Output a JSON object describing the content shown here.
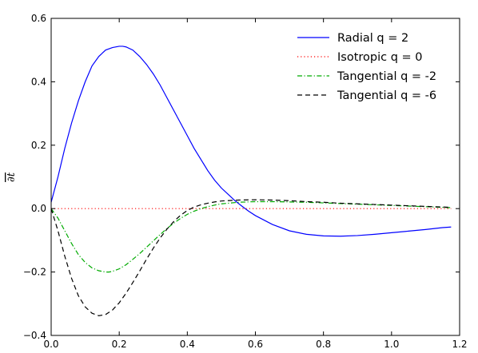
{
  "chart_data": {
    "type": "line",
    "title": "",
    "xlabel": "",
    "ylabel": "∂t",
    "xlim": [
      0.0,
      1.2
    ],
    "ylim": [
      -0.4,
      0.6
    ],
    "xticks": [
      "0.0",
      "0.2",
      "0.4",
      "0.6",
      "0.8",
      "1.0",
      "1.2"
    ],
    "yticks": [
      "−0.4",
      "−0.2",
      "0.0",
      "0.2",
      "0.4",
      "0.6"
    ],
    "grid": false,
    "legend_position": "top-right",
    "series": [
      {
        "name": "Radial q = 2",
        "color": "#0000ff",
        "style": "solid",
        "x": [
          0.0,
          0.02,
          0.04,
          0.06,
          0.08,
          0.1,
          0.12,
          0.14,
          0.16,
          0.18,
          0.2,
          0.21,
          0.22,
          0.24,
          0.26,
          0.28,
          0.3,
          0.32,
          0.34,
          0.36,
          0.38,
          0.4,
          0.42,
          0.44,
          0.46,
          0.48,
          0.5,
          0.52,
          0.54,
          0.56,
          0.58,
          0.6,
          0.65,
          0.7,
          0.75,
          0.8,
          0.85,
          0.9,
          0.95,
          1.0,
          1.05,
          1.1,
          1.15,
          1.175
        ],
        "y": [
          0.02,
          0.1,
          0.19,
          0.27,
          0.34,
          0.4,
          0.45,
          0.48,
          0.5,
          0.508,
          0.512,
          0.512,
          0.51,
          0.5,
          0.48,
          0.455,
          0.425,
          0.39,
          0.35,
          0.31,
          0.27,
          0.23,
          0.19,
          0.155,
          0.12,
          0.09,
          0.065,
          0.045,
          0.025,
          0.008,
          -0.008,
          -0.022,
          -0.05,
          -0.07,
          -0.081,
          -0.086,
          -0.087,
          -0.085,
          -0.081,
          -0.076,
          -0.071,
          -0.066,
          -0.06,
          -0.058
        ]
      },
      {
        "name": "Isotropic q = 0",
        "color": "#ff0000",
        "style": "dotted",
        "x": [
          0.0,
          1.175
        ],
        "y": [
          0.0,
          0.0
        ]
      },
      {
        "name": "Tangential q = -2",
        "color": "#00aa00",
        "style": "dashdot",
        "x": [
          0.0,
          0.02,
          0.04,
          0.06,
          0.08,
          0.1,
          0.12,
          0.14,
          0.16,
          0.17,
          0.18,
          0.2,
          0.22,
          0.24,
          0.26,
          0.28,
          0.3,
          0.32,
          0.34,
          0.36,
          0.38,
          0.4,
          0.42,
          0.44,
          0.46,
          0.48,
          0.5,
          0.55,
          0.6,
          0.65,
          0.7,
          0.75,
          0.8,
          0.85,
          0.9,
          0.95,
          1.0,
          1.05,
          1.1,
          1.15,
          1.175
        ],
        "y": [
          0.0,
          -0.03,
          -0.07,
          -0.11,
          -0.145,
          -0.17,
          -0.187,
          -0.196,
          -0.2,
          -0.2,
          -0.198,
          -0.19,
          -0.177,
          -0.16,
          -0.142,
          -0.122,
          -0.102,
          -0.082,
          -0.063,
          -0.046,
          -0.031,
          -0.018,
          -0.008,
          0.0,
          0.006,
          0.011,
          0.015,
          0.02,
          0.022,
          0.022,
          0.021,
          0.02,
          0.018,
          0.016,
          0.014,
          0.012,
          0.01,
          0.008,
          0.006,
          0.004,
          0.003
        ]
      },
      {
        "name": "Tangential q = -6",
        "color": "#000000",
        "style": "dashed",
        "x": [
          0.0,
          0.02,
          0.04,
          0.06,
          0.08,
          0.1,
          0.12,
          0.14,
          0.16,
          0.18,
          0.2,
          0.22,
          0.24,
          0.26,
          0.28,
          0.3,
          0.32,
          0.34,
          0.36,
          0.38,
          0.4,
          0.42,
          0.44,
          0.46,
          0.48,
          0.5,
          0.55,
          0.6,
          0.65,
          0.7,
          0.75,
          0.8,
          0.85,
          0.9,
          0.95,
          1.0,
          1.05,
          1.1,
          1.15,
          1.175
        ],
        "y": [
          0.0,
          -0.07,
          -0.15,
          -0.22,
          -0.275,
          -0.31,
          -0.33,
          -0.338,
          -0.334,
          -0.32,
          -0.297,
          -0.267,
          -0.233,
          -0.197,
          -0.16,
          -0.125,
          -0.093,
          -0.065,
          -0.041,
          -0.021,
          -0.006,
          0.005,
          0.012,
          0.017,
          0.021,
          0.024,
          0.027,
          0.028,
          0.027,
          0.025,
          0.022,
          0.02,
          0.017,
          0.015,
          0.013,
          0.011,
          0.009,
          0.007,
          0.005,
          0.004
        ]
      }
    ]
  }
}
